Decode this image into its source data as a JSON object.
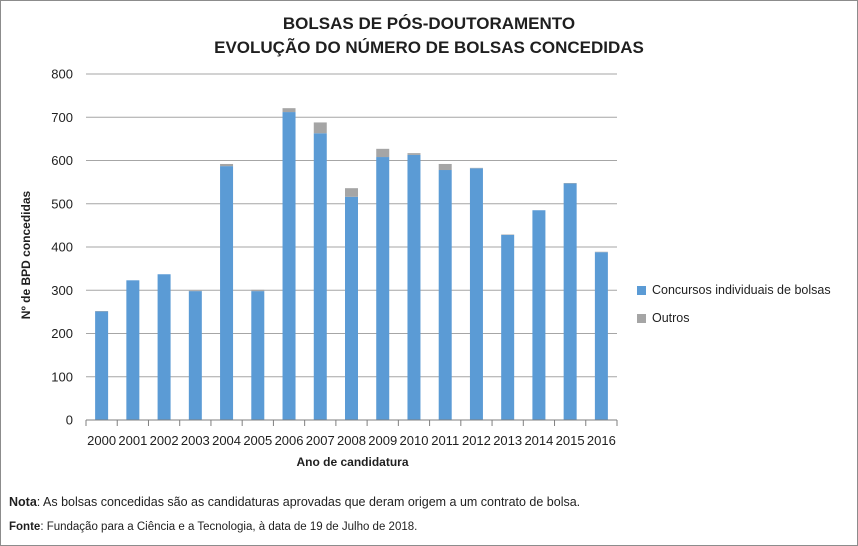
{
  "chart_data": {
    "type": "bar",
    "stacked": true,
    "title_line1": "BOLSAS DE PÓS-DOUTORAMENTO",
    "title_line2": "EVOLUÇÃO DO NÚMERO DE BOLSAS CONCEDIDAS",
    "xlabel": "Ano de candidatura",
    "ylabel": "Nº de BPD concedidas",
    "ylim": [
      0,
      800
    ],
    "yticks": [
      "0",
      "100",
      "200",
      "300",
      "400",
      "500",
      "600",
      "700",
      "800"
    ],
    "grid": true,
    "legend_position": "right",
    "categories": [
      "2000",
      "2001",
      "2002",
      "2003",
      "2004",
      "2005",
      "2006",
      "2007",
      "2008",
      "2009",
      "2010",
      "2011",
      "2012",
      "2013",
      "2014",
      "2015",
      "2016"
    ],
    "series": [
      {
        "name": "Concursos individuais de bolsas",
        "color": "#5b9bd5",
        "values": [
          251,
          323,
          337,
          298,
          587,
          298,
          712,
          663,
          516,
          608,
          613,
          578,
          582,
          428,
          485,
          547,
          388
        ]
      },
      {
        "name": "Outros",
        "color": "#a5a5a5",
        "values": [
          1,
          0,
          0,
          1,
          5,
          3,
          9,
          25,
          20,
          19,
          4,
          14,
          1,
          1,
          0,
          1,
          1
        ]
      }
    ]
  },
  "footnotes": {
    "note_label": "Nota",
    "note_text": ": As bolsas concedidas são as candidaturas aprovadas que deram origem a um contrato de bolsa.",
    "source_label": "Fonte",
    "source_text": ": Fundação para a Ciência e a Tecnologia, à data de 19 de Julho de 2018."
  },
  "colors": {
    "grid": "#a6a6a6",
    "axis": "#7f7f7f",
    "text": "#1f1f1f"
  }
}
